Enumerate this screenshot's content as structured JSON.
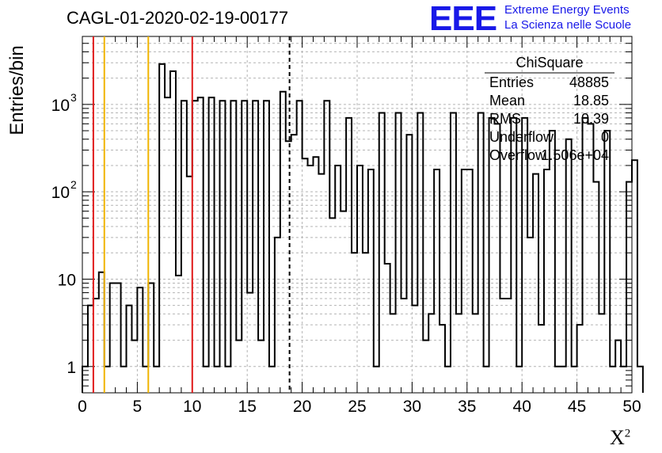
{
  "title": "CAGL-01-2020-02-19-00177",
  "logo": {
    "mark": "EEE",
    "line1": "Extreme Energy Events",
    "line2": "La Scienza nelle Scuole",
    "color": "#1818e8"
  },
  "stats_box": {
    "name": "ChiSquare",
    "rows": [
      {
        "label": "Entries",
        "value": "48885"
      },
      {
        "label": "Mean",
        "value": "18.85"
      },
      {
        "label": "RMS",
        "value": "10.39"
      },
      {
        "label": "Underflow",
        "value": "0"
      },
      {
        "label": "Overflow",
        "value": "1.506e+04"
      }
    ]
  },
  "chart_data": {
    "type": "histogram",
    "title": "CAGL-01-2020-02-19-00177",
    "xlabel": "X",
    "xlabel_superscript": "2",
    "ylabel": "Entries/bin",
    "xlim": [
      0,
      50
    ],
    "ylim": [
      0.5,
      6000
    ],
    "y_scale": "log",
    "grid": true,
    "bin_width": 0.5,
    "x_ticks": [
      "0",
      "5",
      "10",
      "15",
      "20",
      "25",
      "30",
      "35",
      "40",
      "45",
      "50"
    ],
    "y_ticks": [
      {
        "value": 1,
        "label": "1"
      },
      {
        "value": 10,
        "label": "10"
      },
      {
        "value": 100,
        "label": "10",
        "exp": "2"
      },
      {
        "value": 1000,
        "label": "10",
        "exp": "3"
      }
    ],
    "values": [
      1,
      5,
      6,
      12,
      1,
      9,
      9,
      1,
      5,
      2,
      8,
      1,
      9,
      1,
      2900,
      1200,
      2400,
      11,
      1100,
      150,
      1100,
      1200,
      1,
      1200,
      1,
      1100,
      1,
      1100,
      2,
      1100,
      7,
      1100,
      2,
      1100,
      1,
      30,
      1400,
      380,
      450,
      1100,
      240,
      200,
      250,
      160,
      1100,
      50,
      200,
      60,
      700,
      20,
      200,
      20,
      180,
      1,
      800,
      15,
      4,
      800,
      6,
      450,
      5,
      800,
      2,
      4,
      180,
      3,
      1,
      800,
      4,
      180,
      180,
      4,
      800,
      1,
      700,
      600,
      6,
      6,
      700,
      1,
      700,
      30,
      160,
      3,
      180,
      500,
      1,
      1,
      400,
      1,
      3,
      700,
      600,
      130,
      4,
      500,
      1,
      2,
      1,
      130,
      230,
      1
    ],
    "vlines": [
      {
        "x": 1.0,
        "color": "#e01a1a",
        "style": "solid"
      },
      {
        "x": 2.0,
        "color": "#f0b400",
        "style": "solid"
      },
      {
        "x": 6.0,
        "color": "#f0b400",
        "style": "solid"
      },
      {
        "x": 10.0,
        "color": "#e01a1a",
        "style": "solid"
      },
      {
        "x": 18.85,
        "color": "#000000",
        "style": "dashed"
      }
    ]
  }
}
